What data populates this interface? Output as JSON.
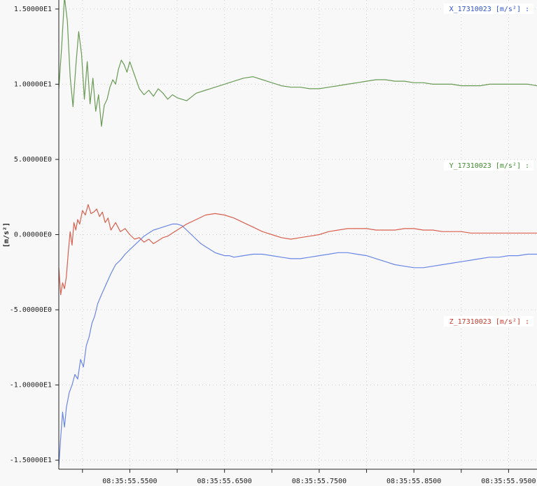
{
  "chart_data": {
    "type": "line",
    "ylabel": "[m/s²]",
    "ylim": [
      -15.6,
      15.6
    ],
    "xlim": [
      "08:35:55.4750",
      "08:35:55.9800"
    ],
    "grid": true,
    "legend_placement": "right",
    "y_tick_values": [
      15,
      10,
      5,
      0,
      -5,
      -10,
      -15
    ],
    "y_tick_labels": [
      "1.50000E1",
      "1.00000E1",
      "5.00000E0",
      "0.00000E0",
      "-5.00000E0",
      "-1.00000E1",
      "-1.50000E1"
    ],
    "x_tick_labels": [
      "08:35:55.5500",
      "08:35:55.6500",
      "08:35:55.7500",
      "08:35:55.8500",
      "08:35:55.9500"
    ],
    "x_minor_ticks": [
      "08:35:55.5000",
      "08:35:55.6000",
      "08:35:55.7000",
      "08:35:55.8000",
      "08:35:55.9000"
    ],
    "series": [
      {
        "name": "X_17310023 [m/s²] :",
        "color": "#6a9a55",
        "legend_color": "#2f52c9",
        "x": [
          "08:35:55.4750",
          "08:35:55.4780",
          "08:35:55.4810",
          "08:35:55.4840",
          "08:35:55.4870",
          "08:35:55.4900",
          "08:35:55.4930",
          "08:35:55.4960",
          "08:35:55.4990",
          "08:35:55.5020",
          "08:35:55.5050",
          "08:35:55.5080",
          "08:35:55.5110",
          "08:35:55.5140",
          "08:35:55.5170",
          "08:35:55.5200",
          "08:35:55.5230",
          "08:35:55.5260",
          "08:35:55.5290",
          "08:35:55.5320",
          "08:35:55.5350",
          "08:35:55.5380",
          "08:35:55.5410",
          "08:35:55.5440",
          "08:35:55.5470",
          "08:35:55.5500",
          "08:35:55.5550",
          "08:35:55.5600",
          "08:35:55.5650",
          "08:35:55.5700",
          "08:35:55.5750",
          "08:35:55.5800",
          "08:35:55.5850",
          "08:35:55.5900",
          "08:35:55.5950",
          "08:35:55.6000",
          "08:35:55.6100",
          "08:35:55.6200",
          "08:35:55.6300",
          "08:35:55.6400",
          "08:35:55.6500",
          "08:35:55.6600",
          "08:35:55.6700",
          "08:35:55.6800",
          "08:35:55.6900",
          "08:35:55.7000",
          "08:35:55.7100",
          "08:35:55.7200",
          "08:35:55.7300",
          "08:35:55.7400",
          "08:35:55.7500",
          "08:35:55.7600",
          "08:35:55.7700",
          "08:35:55.7800",
          "08:35:55.7900",
          "08:35:55.8000",
          "08:35:55.8100",
          "08:35:55.8200",
          "08:35:55.8300",
          "08:35:55.8400",
          "08:35:55.8500",
          "08:35:55.8600",
          "08:35:55.8700",
          "08:35:55.8800",
          "08:35:55.8900",
          "08:35:55.9000",
          "08:35:55.9100",
          "08:35:55.9200",
          "08:35:55.9300",
          "08:35:55.9400",
          "08:35:55.9500",
          "08:35:55.9600",
          "08:35:55.9700",
          "08:35:55.9800"
        ],
        "values": [
          9.7,
          12.5,
          15.8,
          14.2,
          10.5,
          8.5,
          11.2,
          13.5,
          12.0,
          9.0,
          11.5,
          8.7,
          10.4,
          8.2,
          9.3,
          7.2,
          8.6,
          9.0,
          9.8,
          10.3,
          10.0,
          11.0,
          11.6,
          11.3,
          10.8,
          11.5,
          10.6,
          9.7,
          9.3,
          9.6,
          9.2,
          9.7,
          9.4,
          9.0,
          9.3,
          9.1,
          8.9,
          9.4,
          9.6,
          9.8,
          10.0,
          10.2,
          10.4,
          10.5,
          10.3,
          10.1,
          9.9,
          9.8,
          9.8,
          9.7,
          9.7,
          9.8,
          9.9,
          10.0,
          10.1,
          10.2,
          10.3,
          10.3,
          10.2,
          10.2,
          10.1,
          10.1,
          10.0,
          10.0,
          10.0,
          9.9,
          9.9,
          9.9,
          10.0,
          10.0,
          10.0,
          10.0,
          10.0,
          9.9
        ]
      },
      {
        "name": "Y_17310023 [m/s²] :",
        "color": "#6a86e6",
        "legend_color": "#3e8a2e",
        "x": [
          "08:35:55.4750",
          "08:35:55.4770",
          "08:35:55.4790",
          "08:35:55.4810",
          "08:35:55.4830",
          "08:35:55.4860",
          "08:35:55.4890",
          "08:35:55.4920",
          "08:35:55.4950",
          "08:35:55.4980",
          "08:35:55.5010",
          "08:35:55.5040",
          "08:35:55.5070",
          "08:35:55.5100",
          "08:35:55.5130",
          "08:35:55.5160",
          "08:35:55.5200",
          "08:35:55.5250",
          "08:35:55.5300",
          "08:35:55.5350",
          "08:35:55.5400",
          "08:35:55.5450",
          "08:35:55.5500",
          "08:35:55.5550",
          "08:35:55.5600",
          "08:35:55.5650",
          "08:35:55.5700",
          "08:35:55.5750",
          "08:35:55.5800",
          "08:35:55.5850",
          "08:35:55.5900",
          "08:35:55.5950",
          "08:35:55.6000",
          "08:35:55.6050",
          "08:35:55.6100",
          "08:35:55.6150",
          "08:35:55.6200",
          "08:35:55.6250",
          "08:35:55.6300",
          "08:35:55.6350",
          "08:35:55.6400",
          "08:35:55.6450",
          "08:35:55.6500",
          "08:35:55.6550",
          "08:35:55.6600",
          "08:35:55.6700",
          "08:35:55.6800",
          "08:35:55.6900",
          "08:35:55.7000",
          "08:35:55.7100",
          "08:35:55.7200",
          "08:35:55.7300",
          "08:35:55.7400",
          "08:35:55.7500",
          "08:35:55.7600",
          "08:35:55.7700",
          "08:35:55.7800",
          "08:35:55.7900",
          "08:35:55.8000",
          "08:35:55.8100",
          "08:35:55.8200",
          "08:35:55.8300",
          "08:35:55.8400",
          "08:35:55.8500",
          "08:35:55.8600",
          "08:35:55.8700",
          "08:35:55.8800",
          "08:35:55.8900",
          "08:35:55.9000",
          "08:35:55.9100",
          "08:35:55.9200",
          "08:35:55.9300",
          "08:35:55.9400",
          "08:35:55.9500",
          "08:35:55.9600",
          "08:35:55.9700",
          "08:35:55.9800"
        ],
        "values": [
          -15.4,
          -13.5,
          -11.8,
          -12.8,
          -11.5,
          -10.5,
          -10.0,
          -9.3,
          -9.6,
          -8.3,
          -8.8,
          -7.4,
          -6.8,
          -5.9,
          -5.4,
          -4.6,
          -4.0,
          -3.3,
          -2.6,
          -2.0,
          -1.7,
          -1.3,
          -1.0,
          -0.7,
          -0.4,
          -0.1,
          0.1,
          0.3,
          0.4,
          0.5,
          0.6,
          0.7,
          0.7,
          0.6,
          0.3,
          0.0,
          -0.3,
          -0.6,
          -0.8,
          -1.0,
          -1.2,
          -1.3,
          -1.4,
          -1.4,
          -1.5,
          -1.4,
          -1.3,
          -1.3,
          -1.4,
          -1.5,
          -1.6,
          -1.6,
          -1.5,
          -1.4,
          -1.3,
          -1.2,
          -1.2,
          -1.3,
          -1.4,
          -1.6,
          -1.8,
          -2.0,
          -2.1,
          -2.2,
          -2.2,
          -2.1,
          -2.0,
          -1.9,
          -1.8,
          -1.7,
          -1.6,
          -1.5,
          -1.5,
          -1.4,
          -1.4,
          -1.3,
          -1.3
        ]
      },
      {
        "name": "Z_17310023 [m/s²] :",
        "color": "#d8604f",
        "legend_color": "#c0392b",
        "x": [
          "08:35:55.4750",
          "08:35:55.4770",
          "08:35:55.4790",
          "08:35:55.4810",
          "08:35:55.4830",
          "08:35:55.4850",
          "08:35:55.4870",
          "08:35:55.4890",
          "08:35:55.4910",
          "08:35:55.4930",
          "08:35:55.4950",
          "08:35:55.4970",
          "08:35:55.5000",
          "08:35:55.5030",
          "08:35:55.5060",
          "08:35:55.5090",
          "08:35:55.5120",
          "08:35:55.5150",
          "08:35:55.5180",
          "08:35:55.5210",
          "08:35:55.5240",
          "08:35:55.5270",
          "08:35:55.5300",
          "08:35:55.5350",
          "08:35:55.5400",
          "08:35:55.5450",
          "08:35:55.5500",
          "08:35:55.5550",
          "08:35:55.5600",
          "08:35:55.5650",
          "08:35:55.5700",
          "08:35:55.5750",
          "08:35:55.5800",
          "08:35:55.5850",
          "08:35:55.5900",
          "08:35:55.5950",
          "08:35:55.6000",
          "08:35:55.6100",
          "08:35:55.6200",
          "08:35:55.6300",
          "08:35:55.6400",
          "08:35:55.6500",
          "08:35:55.6600",
          "08:35:55.6700",
          "08:35:55.6800",
          "08:35:55.6900",
          "08:35:55.7000",
          "08:35:55.7100",
          "08:35:55.7200",
          "08:35:55.7300",
          "08:35:55.7400",
          "08:35:55.7500",
          "08:35:55.7600",
          "08:35:55.7700",
          "08:35:55.7800",
          "08:35:55.7900",
          "08:35:55.8000",
          "08:35:55.8100",
          "08:35:55.8200",
          "08:35:55.8300",
          "08:35:55.8400",
          "08:35:55.8500",
          "08:35:55.8600",
          "08:35:55.8700",
          "08:35:55.8800",
          "08:35:55.8900",
          "08:35:55.9000",
          "08:35:55.9100",
          "08:35:55.9200",
          "08:35:55.9300",
          "08:35:55.9400",
          "08:35:55.9500",
          "08:35:55.9600",
          "08:35:55.9700",
          "08:35:55.9800"
        ],
        "values": [
          -2.2,
          -4.0,
          -3.2,
          -3.6,
          -2.8,
          -1.2,
          0.2,
          -0.7,
          0.8,
          0.3,
          1.0,
          0.7,
          1.6,
          1.3,
          2.0,
          1.4,
          1.5,
          1.7,
          1.2,
          1.5,
          0.8,
          1.1,
          0.3,
          0.8,
          0.2,
          0.4,
          0.0,
          -0.3,
          -0.2,
          -0.5,
          -0.3,
          -0.6,
          -0.4,
          -0.2,
          -0.1,
          0.1,
          0.3,
          0.7,
          1.0,
          1.3,
          1.4,
          1.3,
          1.1,
          0.8,
          0.5,
          0.2,
          0.0,
          -0.2,
          -0.3,
          -0.2,
          -0.1,
          0.0,
          0.2,
          0.3,
          0.4,
          0.4,
          0.4,
          0.3,
          0.3,
          0.3,
          0.4,
          0.4,
          0.3,
          0.3,
          0.2,
          0.2,
          0.2,
          0.1,
          0.1,
          0.1,
          0.1,
          0.1,
          0.1,
          0.1,
          0.1
        ]
      }
    ]
  }
}
